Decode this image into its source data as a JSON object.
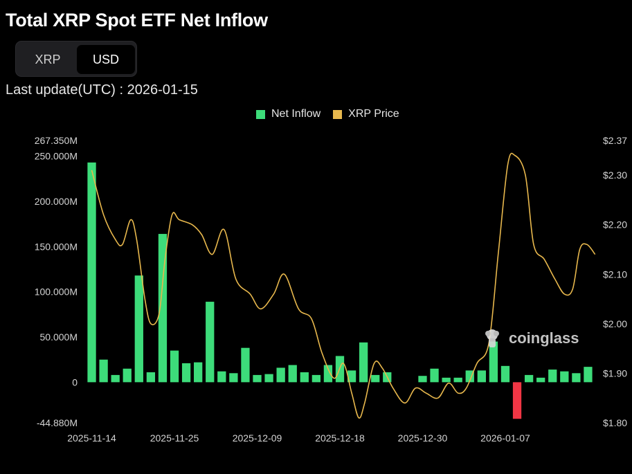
{
  "header": {
    "title": "Total XRP Spot ETF Net Inflow",
    "toggle": [
      "XRP",
      "USD"
    ],
    "toggle_selected": "USD",
    "last_update": "Last update(UTC) : 2026-01-15"
  },
  "watermark": {
    "text": "coinglass",
    "icon": "coinglass-logo-icon"
  },
  "colors": {
    "inflow": "#3ddc7a",
    "outflow": "#f23645",
    "price": "#e8b84d",
    "background": "#000000"
  },
  "chart_data": {
    "type": "bar",
    "title": "Total XRP Spot ETF Net Inflow",
    "legend": {
      "position": "top",
      "entries": [
        {
          "name": "Net Inflow",
          "color": "#3ddc7a"
        },
        {
          "name": "XRP Price",
          "color": "#e8b84d"
        }
      ]
    },
    "grid": false,
    "y_left": {
      "min": -44.88,
      "max": 267.35,
      "unit": "M",
      "ticks": [
        -44.88,
        0,
        50,
        100,
        150,
        200,
        250,
        267.35
      ],
      "tick_labels": [
        "-44.880M",
        "0",
        "50.000M",
        "100.000M",
        "150.000M",
        "200.000M",
        "250.000M",
        "267.350M"
      ]
    },
    "y_right": {
      "min": 1.8,
      "max": 2.37,
      "ticks": [
        1.8,
        1.9,
        2.0,
        2.1,
        2.2,
        2.3,
        2.37
      ],
      "tick_labels": [
        "$1.80",
        "$1.90",
        "$2.00",
        "$2.10",
        "$2.20",
        "$2.30",
        "$2.37"
      ]
    },
    "x_tick_labels": [
      {
        "index": 0,
        "label": "2025-11-14"
      },
      {
        "index": 7,
        "label": "2025-11-25"
      },
      {
        "index": 14,
        "label": "2025-12-09"
      },
      {
        "index": 21,
        "label": "2025-12-18"
      },
      {
        "index": 28,
        "label": "2025-12-30"
      },
      {
        "index": 35,
        "label": "2026-01-07"
      }
    ],
    "series": [
      {
        "name": "Net Inflow",
        "kind": "bar",
        "axis": "left",
        "values": [
          243,
          25,
          8,
          15,
          118,
          11,
          164,
          35,
          21,
          22,
          89,
          12,
          10,
          38,
          8,
          9,
          16,
          19,
          11,
          8,
          19,
          29,
          13,
          44,
          8,
          11,
          0,
          0,
          7,
          15,
          5,
          5,
          13,
          13,
          45,
          18,
          -40.5,
          8,
          5,
          14,
          12,
          10,
          17
        ]
      },
      {
        "name": "XRP Price",
        "kind": "line",
        "axis": "right",
        "values": [
          [
            0,
            2.31
          ],
          [
            1,
            2.22
          ],
          [
            2,
            2.17
          ],
          [
            2.6,
            2.16
          ],
          [
            3.3,
            2.21
          ],
          [
            3.8,
            2.17
          ],
          [
            4.5,
            2.05
          ],
          [
            5,
            2.0
          ],
          [
            5.7,
            2.02
          ],
          [
            6.2,
            2.13
          ],
          [
            6.8,
            2.22
          ],
          [
            7.4,
            2.21
          ],
          [
            8.5,
            2.2
          ],
          [
            9.3,
            2.18
          ],
          [
            10.2,
            2.14
          ],
          [
            11.2,
            2.19
          ],
          [
            12.2,
            2.09
          ],
          [
            13.4,
            2.06
          ],
          [
            14.3,
            2.03
          ],
          [
            15.4,
            2.06
          ],
          [
            16.3,
            2.1
          ],
          [
            17.5,
            2.03
          ],
          [
            18.6,
            2.01
          ],
          [
            19.5,
            1.94
          ],
          [
            20.5,
            1.89
          ],
          [
            21.3,
            1.92
          ],
          [
            22,
            1.86
          ],
          [
            22.6,
            1.81
          ],
          [
            23.1,
            1.84
          ],
          [
            23.9,
            1.92
          ],
          [
            24.6,
            1.91
          ],
          [
            25.5,
            1.87
          ],
          [
            26.5,
            1.84
          ],
          [
            27.4,
            1.87
          ],
          [
            28.3,
            1.86
          ],
          [
            29.3,
            1.85
          ],
          [
            30.2,
            1.88
          ],
          [
            31,
            1.86
          ],
          [
            31.7,
            1.87
          ],
          [
            32.6,
            1.92
          ],
          [
            33.6,
            1.96
          ],
          [
            34.4,
            2.14
          ],
          [
            35.2,
            2.32
          ],
          [
            35.8,
            2.34
          ],
          [
            36.7,
            2.3
          ],
          [
            37.4,
            2.16
          ],
          [
            38.3,
            2.13
          ],
          [
            39.2,
            2.09
          ],
          [
            40,
            2.06
          ],
          [
            40.7,
            2.07
          ],
          [
            41.3,
            2.15
          ],
          [
            41.9,
            2.16
          ],
          [
            42.6,
            2.14
          ]
        ]
      }
    ]
  }
}
